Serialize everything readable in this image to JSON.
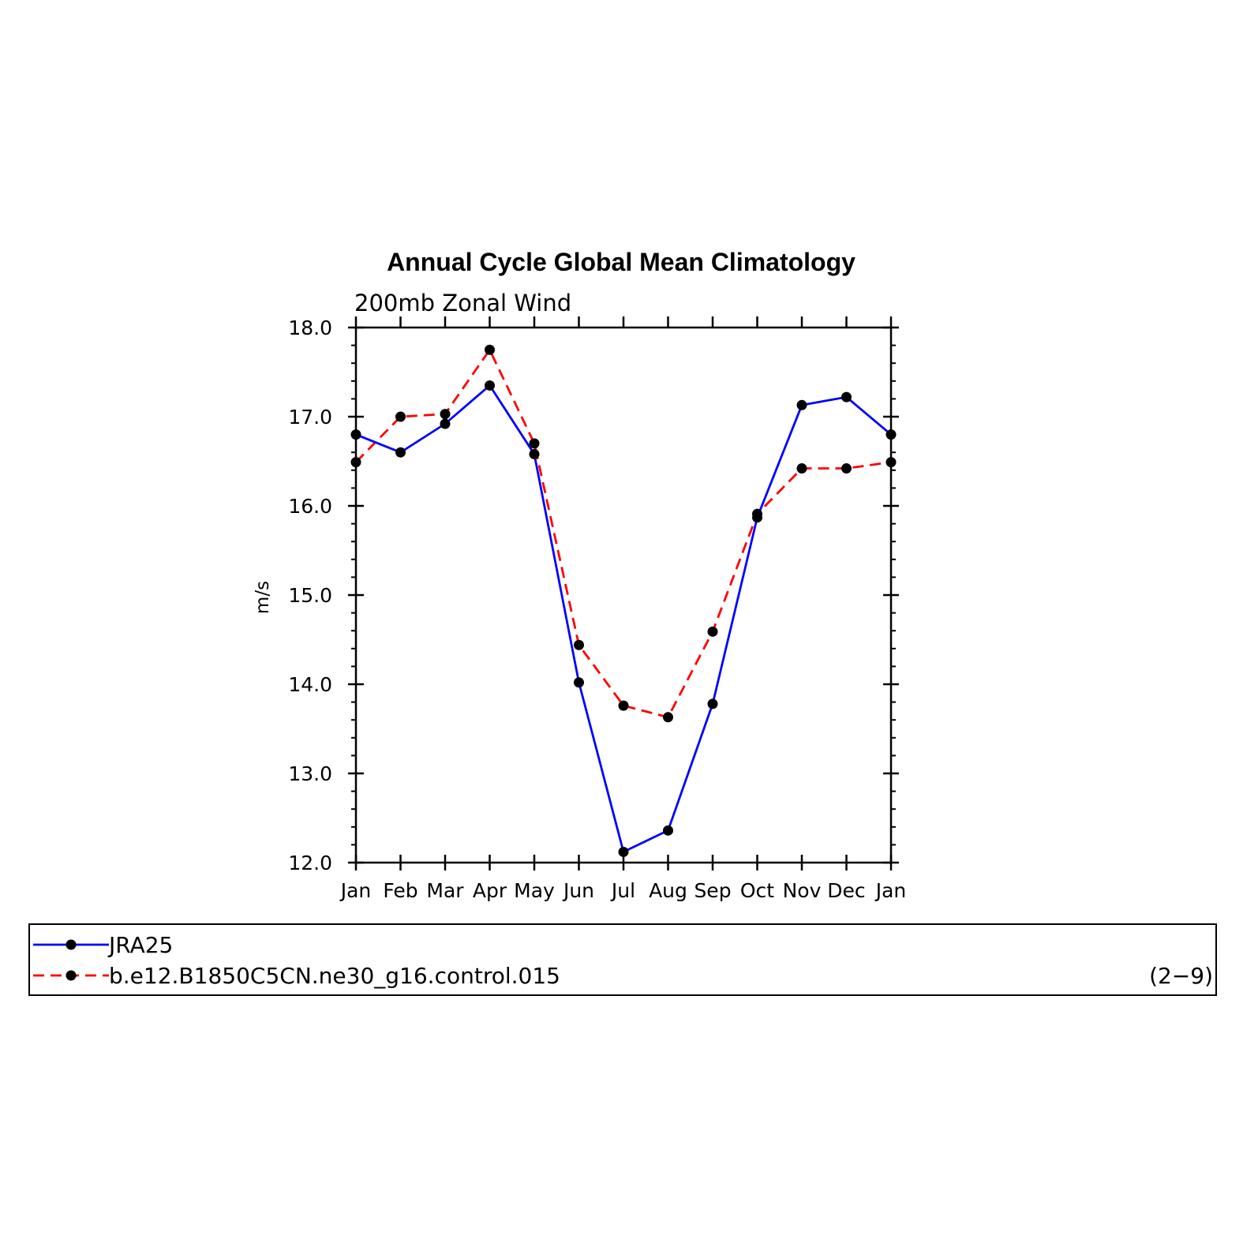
{
  "chart_data": {
    "type": "line",
    "title": "Annual Cycle Global Mean Climatology",
    "subtitle": "200mb Zonal Wind",
    "ylabel": "m/s",
    "xlabel": "",
    "categories": [
      "Jan",
      "Feb",
      "Mar",
      "Apr",
      "May",
      "Jun",
      "Jul",
      "Aug",
      "Sep",
      "Oct",
      "Nov",
      "Dec",
      "Jan"
    ],
    "ylim": [
      12.0,
      18.0
    ],
    "yticks": [
      "12.0",
      "13.0",
      "14.0",
      "15.0",
      "16.0",
      "17.0",
      "18.0"
    ],
    "grid": false,
    "legend_position": "bottom",
    "series": [
      {
        "name": "JRA25",
        "color": "#0000ff",
        "dash": "solid",
        "values": [
          16.8,
          16.6,
          16.92,
          17.35,
          16.58,
          14.02,
          12.12,
          12.36,
          13.78,
          15.87,
          17.13,
          17.22,
          16.8
        ]
      },
      {
        "name": "b.e12.B1850C5CN.ne30_g16.control.015",
        "color": "#ff0000",
        "dash": "dashed",
        "values": [
          16.49,
          17.0,
          17.03,
          17.75,
          16.7,
          14.44,
          13.76,
          13.63,
          14.59,
          15.91,
          16.42,
          16.42,
          16.49
        ]
      }
    ],
    "annotation": "(2−9)"
  }
}
